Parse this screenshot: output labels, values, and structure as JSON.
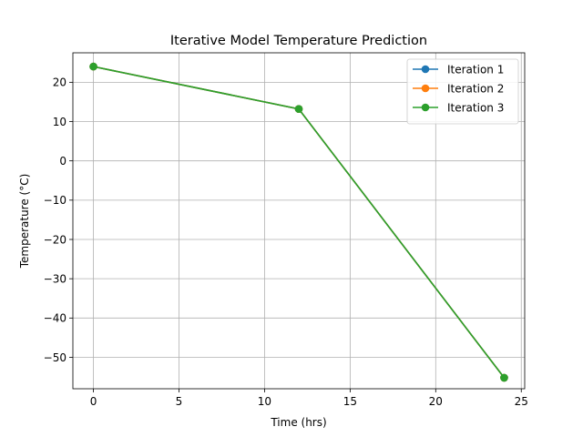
{
  "chart_data": {
    "type": "line",
    "title": "Iterative Model Temperature Prediction",
    "xlabel": "Time (hrs)",
    "ylabel": "Temperature (°C)",
    "xlim": [
      -1.2,
      25.2
    ],
    "ylim": [
      -58.0,
      27.5
    ],
    "xticks": [
      0,
      5,
      10,
      15,
      20,
      25
    ],
    "yticks": [
      -50,
      -40,
      -30,
      -20,
      -10,
      0,
      10,
      20
    ],
    "xtick_labels": [
      "0",
      "5",
      "10",
      "15",
      "20",
      "25"
    ],
    "ytick_labels": [
      "−50",
      "−40",
      "−30",
      "−20",
      "−10",
      "0",
      "10",
      "20"
    ],
    "grid": true,
    "legend_position": "upper-right",
    "series": [
      {
        "name": "Iteration 1",
        "color": "#1f77b4",
        "x": [
          0,
          12,
          24
        ],
        "y": [
          24.0,
          13.2,
          -55.2
        ]
      },
      {
        "name": "Iteration 2",
        "color": "#ff7f0e",
        "x": [
          0,
          12,
          24
        ],
        "y": [
          24.0,
          13.2,
          -55.2
        ]
      },
      {
        "name": "Iteration 3",
        "color": "#2ca02c",
        "x": [
          0,
          12,
          24
        ],
        "y": [
          24.0,
          13.2,
          -55.2
        ]
      }
    ]
  }
}
